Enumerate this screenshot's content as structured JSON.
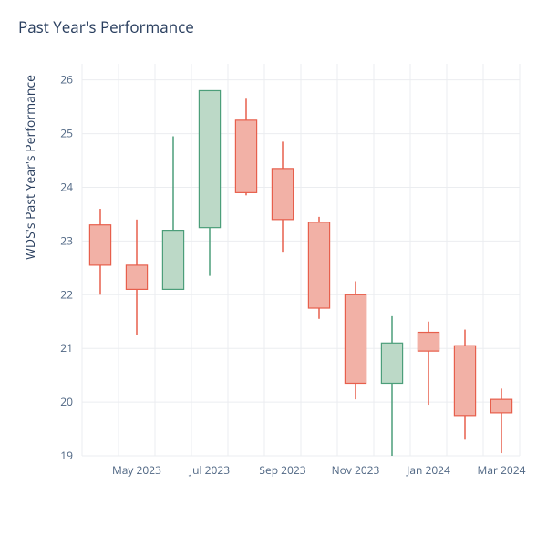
{
  "chart": {
    "type": "candlestick",
    "title": "Past Year's Performance",
    "title_fontsize": 17,
    "title_color": "#2a3f5f",
    "ylabel": "WDS's Past Year's Performance",
    "ylabel_fontsize": 14,
    "background_color": "#ffffff",
    "grid_color": "#ebedf0",
    "axis_text_color": "#506784",
    "plot_area_bg": "#ffffff",
    "ylim": [
      19,
      26.3
    ],
    "yticks": [
      19,
      20,
      21,
      22,
      23,
      24,
      25,
      26
    ],
    "xlabels": [
      "May 2023",
      "Jul 2023",
      "Sep 2023",
      "Nov 2023",
      "Jan 2024",
      "Mar 2024"
    ],
    "xtick_indices": [
      1,
      3,
      5,
      7,
      9,
      11
    ],
    "bar_width": 0.58,
    "colors": {
      "up_fill": "#bcd9c7",
      "up_line": "#4c9e7a",
      "down_fill": "#f2b1a6",
      "down_line": "#e75f4c"
    },
    "candles": [
      {
        "i": 0,
        "open": 23.3,
        "high": 23.6,
        "low": 22.0,
        "close": 22.55,
        "dir": "down"
      },
      {
        "i": 1,
        "open": 22.55,
        "high": 23.4,
        "low": 21.25,
        "close": 22.1,
        "dir": "down"
      },
      {
        "i": 2,
        "open": 22.1,
        "high": 24.95,
        "low": 22.1,
        "close": 23.2,
        "dir": "up"
      },
      {
        "i": 3,
        "open": 23.25,
        "high": 25.8,
        "low": 22.35,
        "close": 25.8,
        "dir": "up"
      },
      {
        "i": 4,
        "open": 25.25,
        "high": 25.65,
        "low": 23.85,
        "close": 23.9,
        "dir": "down"
      },
      {
        "i": 5,
        "open": 24.35,
        "high": 24.85,
        "low": 22.8,
        "close": 23.4,
        "dir": "down"
      },
      {
        "i": 6,
        "open": 23.35,
        "high": 23.45,
        "low": 21.55,
        "close": 21.75,
        "dir": "down"
      },
      {
        "i": 7,
        "open": 22.0,
        "high": 22.25,
        "low": 20.05,
        "close": 20.35,
        "dir": "down"
      },
      {
        "i": 8,
        "open": 20.35,
        "high": 21.6,
        "low": 19.0,
        "close": 21.1,
        "dir": "up"
      },
      {
        "i": 9,
        "open": 21.3,
        "high": 21.5,
        "low": 19.95,
        "close": 20.95,
        "dir": "down"
      },
      {
        "i": 10,
        "open": 21.05,
        "high": 21.35,
        "low": 19.3,
        "close": 19.75,
        "dir": "down"
      },
      {
        "i": 11,
        "open": 20.05,
        "high": 20.25,
        "low": 19.05,
        "close": 19.8,
        "dir": "down"
      }
    ]
  }
}
